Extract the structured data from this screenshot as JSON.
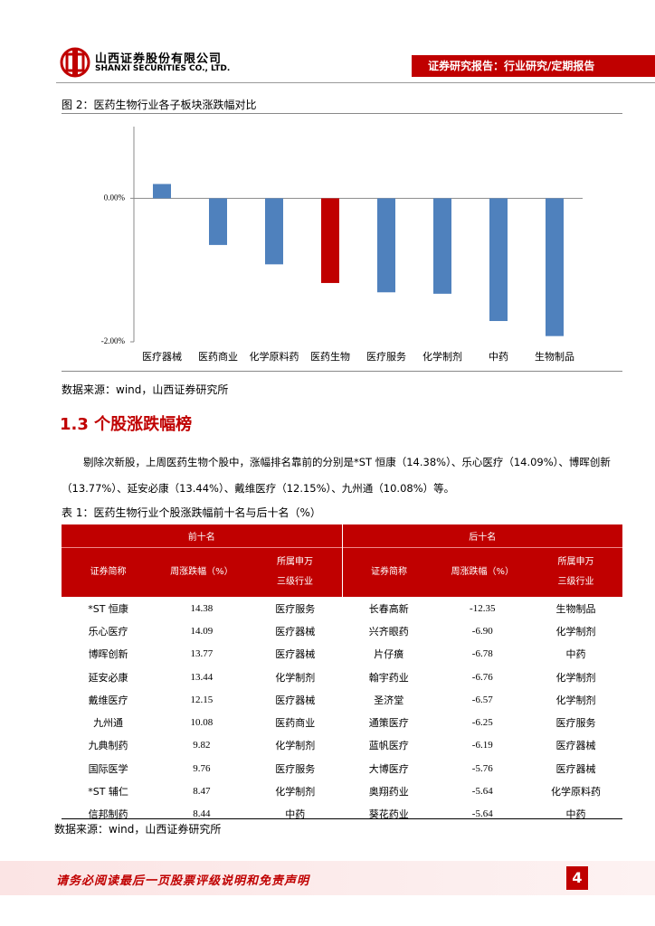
{
  "header": {
    "company_cn": "山西证券股份有限公司",
    "company_en": "SHANXI SECURITIES CO., LTD.",
    "report_type": "证券研究报告：行业研究/定期报告"
  },
  "figure_title": "图 2：医药生物行业各子板块涨跌幅对比",
  "chart_data": {
    "type": "bar",
    "categories": [
      "医疗器械",
      "医药商业",
      "化学原料药",
      "医药生物",
      "医疗服务",
      "化学制剂",
      "中药",
      "生物制品"
    ],
    "values": [
      0.2,
      -0.65,
      -0.92,
      -1.18,
      -1.31,
      -1.33,
      -1.71,
      -1.92
    ],
    "colors": [
      "#4f81bd",
      "#4f81bd",
      "#4f81bd",
      "#c00000",
      "#4f81bd",
      "#4f81bd",
      "#4f81bd",
      "#4f81bd"
    ],
    "ylim": [
      -2,
      1
    ],
    "yticks": [
      {
        "value": 0,
        "label": "0.00%"
      },
      {
        "value": -2,
        "label": "-2.00%"
      }
    ]
  },
  "figure_source": "数据来源：wind，山西证券研究所",
  "section_title": "1.3 个股涨跌幅榜",
  "paragraph": "剔除次新股，上周医药生物个股中，涨幅排名靠前的分别是*ST 恒康（14.38%）、乐心医疗（14.09%）、博晖创新（13.77%）、延安必康（13.44%）、戴维医疗（12.15%）、九州通（10.08%）等。",
  "table_title": "表 1：医药生物行业个股涨跌幅前十名与后十名（%）",
  "table": {
    "groups": [
      "前十名",
      "后十名"
    ],
    "columns": [
      [
        "证券简称"
      ],
      [
        "周涨跌幅（%）"
      ],
      [
        "所属申万",
        "三级行业"
      ],
      [
        "证券简称"
      ],
      [
        "周涨跌幅（%）"
      ],
      [
        "所属申万",
        "三级行业"
      ]
    ],
    "rows": [
      [
        "*ST 恒康",
        "14.38",
        "医疗服务",
        "长春高新",
        "-12.35",
        "生物制品"
      ],
      [
        "乐心医疗",
        "14.09",
        "医疗器械",
        "兴齐眼药",
        "-6.90",
        "化学制剂"
      ],
      [
        "博晖创新",
        "13.77",
        "医疗器械",
        "片仔癀",
        "-6.78",
        "中药"
      ],
      [
        "延安必康",
        "13.44",
        "化学制剂",
        "翰宇药业",
        "-6.76",
        "化学制剂"
      ],
      [
        "戴维医疗",
        "12.15",
        "医疗器械",
        "圣济堂",
        "-6.57",
        "化学制剂"
      ],
      [
        "九州通",
        "10.08",
        "医药商业",
        "通策医疗",
        "-6.25",
        "医疗服务"
      ],
      [
        "九典制药",
        "9.82",
        "化学制剂",
        "蓝帆医疗",
        "-6.19",
        "医疗器械"
      ],
      [
        "国际医学",
        "9.76",
        "医疗服务",
        "大博医疗",
        "-5.76",
        "医疗器械"
      ],
      [
        "*ST 辅仁",
        "8.47",
        "化学制剂",
        "奥翔药业",
        "-5.64",
        "化学原料药"
      ],
      [
        "信邦制药",
        "8.44",
        "中药",
        "葵花药业",
        "-5.64",
        "中药"
      ]
    ]
  },
  "table_source": "数据来源：wind，山西证券研究所",
  "footer": {
    "disclaimer": "请务必阅读最后一页股票评级说明和免责声明",
    "page": "4"
  }
}
